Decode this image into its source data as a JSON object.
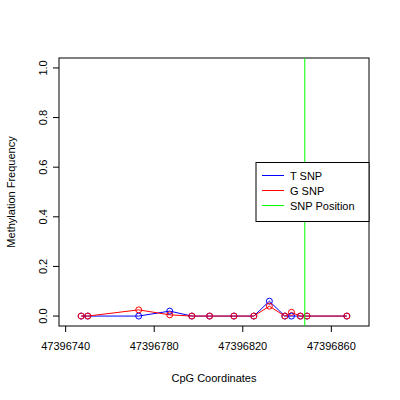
{
  "chart_data": {
    "type": "line",
    "x_label": "CpG Coordinates",
    "y_label": "Methylation Frequency",
    "x": [
      47396747,
      47396750,
      47396773,
      47396787,
      47396797,
      47396805,
      47396816,
      47396825,
      47396832,
      47396839,
      47396842,
      47396846,
      47396849,
      47396867
    ],
    "series": [
      {
        "name": "T SNP",
        "color": "#0000ff",
        "marker": "circle",
        "values": [
          0,
          0,
          0,
          0.02,
          0,
          0,
          0,
          0,
          0.06,
          0,
          0,
          0,
          0,
          0
        ]
      },
      {
        "name": "G SNP",
        "color": "#ff0000",
        "marker": "circle",
        "values": [
          0,
          0,
          0.025,
          0.005,
          0,
          0,
          0,
          0,
          0.04,
          0,
          0.015,
          0,
          0,
          0
        ]
      }
    ],
    "vlines": [
      {
        "name": "SNP Position",
        "color": "#00ff00",
        "x": 47396848
      }
    ],
    "xlim": [
      47396737,
      47396877
    ],
    "ylim": [
      -0.04,
      1.04
    ],
    "xticks": [
      47396740,
      47396780,
      47396820,
      47396860
    ],
    "yticks": [
      {
        "value": 0,
        "label": "0.0"
      },
      {
        "value": 0.2,
        "label": "0.2"
      },
      {
        "value": 0.4,
        "label": "0.4"
      },
      {
        "value": 0.6,
        "label": "0.6"
      },
      {
        "value": 0.8,
        "label": "0.8"
      },
      {
        "value": 1,
        "label": "1.0"
      }
    ],
    "legend": "right",
    "grid": false
  }
}
